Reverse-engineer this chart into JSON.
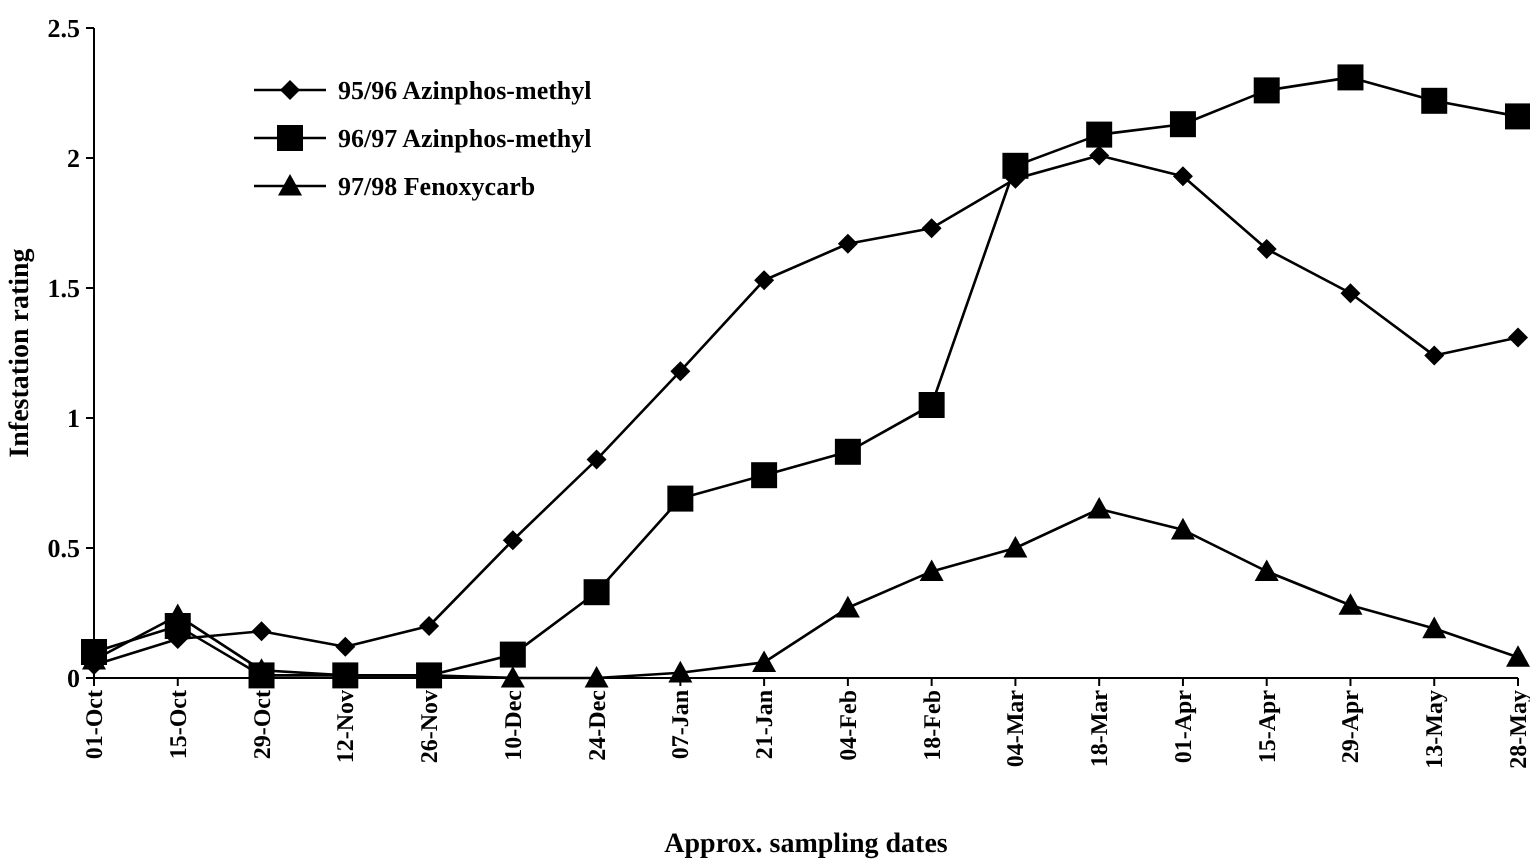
{
  "chart_data": {
    "type": "line",
    "xlabel": "Approx. sampling dates",
    "ylabel": "Infestation rating",
    "categories": [
      "01-Oct",
      "15-Oct",
      "29-Oct",
      "12-Nov",
      "26-Nov",
      "10-Dec",
      "24-Dec",
      "07-Jan",
      "21-Jan",
      "04-Feb",
      "18-Feb",
      "04-Mar",
      "18-Mar",
      "01-Apr",
      "15-Apr",
      "29-Apr",
      "13-May",
      "28-May"
    ],
    "series": [
      {
        "name": "95/96 Azinphos-methyl",
        "color": "#000000",
        "marker": "diamond",
        "values": [
          0.05,
          0.15,
          0.18,
          0.12,
          0.2,
          0.53,
          0.84,
          1.18,
          1.53,
          1.67,
          1.73,
          1.92,
          2.01,
          1.93,
          1.65,
          1.48,
          1.24,
          1.31
        ]
      },
      {
        "name": "96/97 Azinphos-methyl",
        "color": "#000000",
        "marker": "square",
        "values": [
          0.1,
          0.2,
          0.01,
          0.01,
          0.01,
          0.09,
          0.33,
          0.69,
          0.78,
          0.87,
          1.05,
          1.97,
          2.09,
          2.13,
          2.26,
          2.31,
          2.22,
          2.16
        ]
      },
      {
        "name": "97/98 Fenoxycarb",
        "color": "#000000",
        "marker": "triangle",
        "values": [
          0.07,
          0.24,
          0.03,
          0.01,
          0.01,
          0,
          0,
          0.02,
          0.06,
          0.27,
          0.41,
          0.5,
          0.65,
          0.57,
          0.41,
          0.28,
          0.19,
          0.08
        ]
      }
    ],
    "ylim": [
      0,
      2.5
    ],
    "yticks": [
      0,
      {
        "value": 0.5,
        "label": "0.5"
      },
      1,
      {
        "value": 1.5,
        "label": "1.5"
      },
      2,
      {
        "value": 2.5,
        "label": "2.5"
      }
    ],
    "grid": false,
    "legend": "top left",
    "line_style": "solid"
  }
}
